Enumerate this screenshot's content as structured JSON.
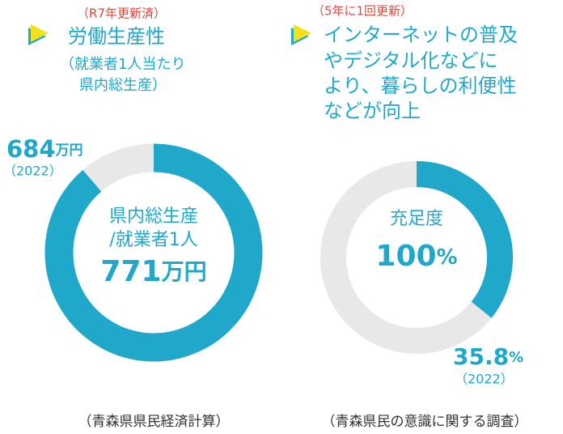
{
  "chart_data": [
    {
      "type": "progress-donut",
      "note": "（R7年更新済）",
      "title": [
        "労働生産性"
      ],
      "subtitle": [
        "（就業者1人当たり",
        "県内総生産）"
      ],
      "value": 684,
      "unit": "万円",
      "year": "（2022）",
      "center_label": [
        "県内総生産",
        "/就業者1人"
      ],
      "target": 771,
      "target_unit": "万円",
      "color": "#1fa8c9",
      "track_color": "#e8e8e8",
      "source": "（青森県県民経済計算）"
    },
    {
      "type": "progress-donut",
      "note": "（5年に1回更新）",
      "title": [
        "インターネットの普及",
        "やデジタル化などに",
        "より、暮らしの利便性",
        "などが向上"
      ],
      "value": 35.8,
      "unit": "%",
      "year": "（2022）",
      "center_label": [
        "充足度"
      ],
      "target": 100,
      "target_unit": "%",
      "color": "#1fa8c9",
      "track_color": "#e8e8e8",
      "source": "（青森県民の意識に関する調査）"
    }
  ]
}
